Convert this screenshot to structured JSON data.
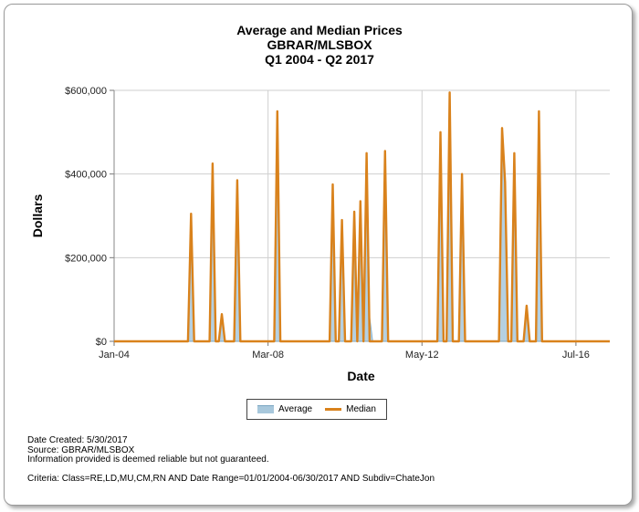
{
  "chart_data": {
    "type": "area",
    "title": [
      "Average and Median Prices",
      "GBRAR/MLSBOX",
      "Q1 2004 - Q2 2017"
    ],
    "xlabel": "Date",
    "ylabel": "Dollars",
    "xlim": [
      "2004-01",
      "2017-06"
    ],
    "ylim": [
      0,
      600000
    ],
    "yticks": [
      0,
      200000,
      400000,
      600000
    ],
    "ytick_labels": [
      "$0",
      "$200,000",
      "$400,000",
      "$600,000"
    ],
    "xticks": [
      "2004-01",
      "2008-03",
      "2012-05",
      "2016-07"
    ],
    "xtick_labels": [
      "Jan-04",
      "Mar-08",
      "May-12",
      "Jul-16"
    ],
    "grid": true,
    "legend_position": "bottom",
    "series": [
      {
        "name": "Average",
        "color": "#a8c8dc",
        "style": "area",
        "points": [
          [
            "2006-01",
            0
          ],
          [
            "2006-02",
            305000
          ],
          [
            "2006-03",
            0
          ],
          [
            "2006-08",
            0
          ],
          [
            "2006-09",
            425000
          ],
          [
            "2006-10",
            0
          ],
          [
            "2006-11",
            0
          ],
          [
            "2006-12",
            65000
          ],
          [
            "2007-01",
            0
          ],
          [
            "2007-04",
            0
          ],
          [
            "2007-05",
            385000
          ],
          [
            "2007-06",
            0
          ],
          [
            "2008-05",
            0
          ],
          [
            "2008-06",
            550000
          ],
          [
            "2008-07",
            0
          ],
          [
            "2009-11",
            0
          ],
          [
            "2009-12",
            375000
          ],
          [
            "2010-01",
            0
          ],
          [
            "2010-02",
            0
          ],
          [
            "2010-03",
            290000
          ],
          [
            "2010-04",
            0
          ],
          [
            "2010-06",
            0
          ],
          [
            "2010-07",
            310000
          ],
          [
            "2010-08",
            0
          ],
          [
            "2010-08",
            0
          ],
          [
            "2010-09",
            335000
          ],
          [
            "2010-10",
            60000
          ],
          [
            "2010-11",
            450000
          ],
          [
            "2010-12",
            60000
          ],
          [
            "2011-01",
            0
          ],
          [
            "2011-04",
            0
          ],
          [
            "2011-05",
            455000
          ],
          [
            "2011-06",
            0
          ],
          [
            "2012-10",
            0
          ],
          [
            "2012-11",
            500000
          ],
          [
            "2012-12",
            0
          ],
          [
            "2013-01",
            0
          ],
          [
            "2013-02",
            595000
          ],
          [
            "2013-03",
            0
          ],
          [
            "2013-05",
            0
          ],
          [
            "2013-06",
            400000
          ],
          [
            "2013-07",
            0
          ],
          [
            "2014-06",
            0
          ],
          [
            "2014-07",
            510000
          ],
          [
            "2014-08",
            380000
          ],
          [
            "2014-09",
            0
          ],
          [
            "2014-10",
            0
          ],
          [
            "2014-11",
            450000
          ],
          [
            "2014-12",
            0
          ],
          [
            "2015-02",
            0
          ],
          [
            "2015-03",
            85000
          ],
          [
            "2015-04",
            0
          ],
          [
            "2015-06",
            0
          ],
          [
            "2015-07",
            550000
          ],
          [
            "2015-08",
            0
          ]
        ]
      },
      {
        "name": "Median",
        "color": "#d9821c",
        "style": "line",
        "points": [
          [
            "2006-01",
            0
          ],
          [
            "2006-02",
            305000
          ],
          [
            "2006-03",
            0
          ],
          [
            "2006-08",
            0
          ],
          [
            "2006-09",
            425000
          ],
          [
            "2006-10",
            0
          ],
          [
            "2006-11",
            0
          ],
          [
            "2006-12",
            65000
          ],
          [
            "2007-01",
            0
          ],
          [
            "2007-04",
            0
          ],
          [
            "2007-05",
            385000
          ],
          [
            "2007-06",
            0
          ],
          [
            "2008-05",
            0
          ],
          [
            "2008-06",
            550000
          ],
          [
            "2008-07",
            0
          ],
          [
            "2009-11",
            0
          ],
          [
            "2009-12",
            375000
          ],
          [
            "2010-01",
            0
          ],
          [
            "2010-02",
            0
          ],
          [
            "2010-03",
            290000
          ],
          [
            "2010-04",
            0
          ],
          [
            "2010-06",
            0
          ],
          [
            "2010-07",
            310000
          ],
          [
            "2010-08",
            0
          ],
          [
            "2010-08",
            0
          ],
          [
            "2010-09",
            335000
          ],
          [
            "2010-10",
            0
          ],
          [
            "2010-11",
            450000
          ],
          [
            "2010-12",
            0
          ],
          [
            "2011-04",
            0
          ],
          [
            "2011-05",
            455000
          ],
          [
            "2011-06",
            0
          ],
          [
            "2012-10",
            0
          ],
          [
            "2012-11",
            500000
          ],
          [
            "2012-12",
            0
          ],
          [
            "2013-01",
            0
          ],
          [
            "2013-02",
            595000
          ],
          [
            "2013-03",
            0
          ],
          [
            "2013-05",
            0
          ],
          [
            "2013-06",
            400000
          ],
          [
            "2013-07",
            0
          ],
          [
            "2014-06",
            0
          ],
          [
            "2014-07",
            510000
          ],
          [
            "2014-08",
            380000
          ],
          [
            "2014-09",
            0
          ],
          [
            "2014-10",
            0
          ],
          [
            "2014-11",
            450000
          ],
          [
            "2014-12",
            0
          ],
          [
            "2015-02",
            0
          ],
          [
            "2015-03",
            85000
          ],
          [
            "2015-04",
            0
          ],
          [
            "2015-06",
            0
          ],
          [
            "2015-07",
            550000
          ],
          [
            "2015-08",
            0
          ]
        ]
      }
    ]
  },
  "legend": {
    "average_label": "Average",
    "median_label": "Median"
  },
  "footer": {
    "date_created": "Date Created: 5/30/2017",
    "source": "Source: GBRAR/MLSBOX",
    "disclaimer": "Information provided is deemed reliable but not guaranteed.",
    "criteria": "Criteria: Class=RE,LD,MU,CM,RN AND Date Range=01/01/2004-06/30/2017 AND Subdiv=ChateJon"
  }
}
